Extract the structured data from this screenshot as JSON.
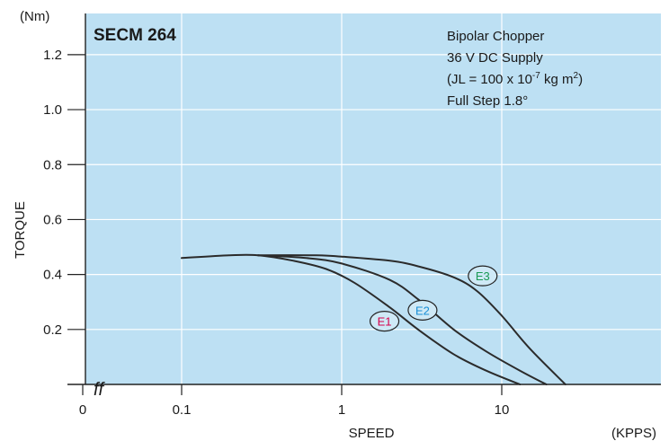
{
  "chart_data": {
    "type": "line",
    "title": "SECM 264",
    "conditions": [
      "Bipolar Chopper",
      "36 V DC Supply",
      "(JL = 100 x 10",
      "Full Step 1.8°"
    ],
    "conditions_line3": {
      "base": "(JL = 100 x 10",
      "exp": "-7",
      "tail": " kg m",
      "tail_exp": "2",
      "close": ")"
    },
    "ylabel": "TORQUE",
    "y_unit": "(Nm)",
    "xlabel": "SPEED",
    "x_unit": "(KPPS)",
    "x_scale": "log",
    "axis_break_symbol": "ff",
    "ylim": [
      0,
      1.35
    ],
    "yticks": [
      0.2,
      0.4,
      0.6,
      0.8,
      1.0,
      1.2
    ],
    "ytick_labels": [
      "0.2",
      "0.4",
      "0.6",
      "0.8",
      "1.0",
      "1.2"
    ],
    "xticks": [
      0.1,
      1,
      10
    ],
    "xtick_labels": [
      "0",
      "0.1",
      "1",
      "10"
    ],
    "grid": true,
    "background": "#bde0f3",
    "series": [
      {
        "name": "E1",
        "color": "#d6004a",
        "x": [
          0.1,
          0.2,
          0.3,
          0.5,
          0.8,
          1.2,
          2,
          3,
          5,
          8,
          13
        ],
        "y": [
          0.46,
          0.47,
          0.47,
          0.45,
          0.42,
          0.37,
          0.28,
          0.2,
          0.11,
          0.05,
          0.0
        ]
      },
      {
        "name": "E2",
        "color": "#1a8fd6",
        "x": [
          0.3,
          0.6,
          1,
          2,
          3,
          5,
          8,
          13,
          19
        ],
        "y": [
          0.47,
          0.46,
          0.44,
          0.38,
          0.31,
          0.2,
          0.12,
          0.05,
          0.0
        ]
      },
      {
        "name": "E3",
        "color": "#1a9a55",
        "x": [
          0.3,
          0.7,
          1,
          2,
          3,
          5,
          7,
          10,
          15,
          25
        ],
        "y": [
          0.47,
          0.47,
          0.465,
          0.45,
          0.43,
          0.39,
          0.34,
          0.25,
          0.13,
          0.0
        ]
      }
    ],
    "labels": [
      {
        "text": "E1",
        "color": "#d6004a",
        "x": 1.85,
        "y": 0.23
      },
      {
        "text": "E2",
        "color": "#1a8fd6",
        "x": 3.2,
        "y": 0.27
      },
      {
        "text": "E3",
        "color": "#1a9a55",
        "x": 7.6,
        "y": 0.395
      }
    ]
  }
}
